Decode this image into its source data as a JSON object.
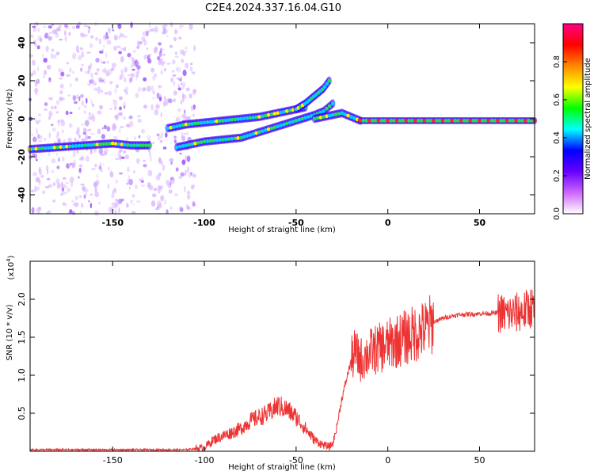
{
  "title": "C2E4.2024.337.16.04.G10",
  "chart_data": [
    {
      "type": "heatmap",
      "xlabel": "Height of straight line (km)",
      "ylabel": "Frequency (Hz)",
      "xlim": [
        -195,
        80
      ],
      "ylim": [
        -50,
        50
      ],
      "xticks": [
        -150,
        -100,
        -50,
        0,
        50
      ],
      "yticks": [
        -40,
        -20,
        0,
        20,
        40
      ],
      "xtick_labels": [
        "-150",
        "-100",
        "-50",
        "0",
        "50"
      ],
      "ytick_labels": [
        "-40",
        "-20",
        "0",
        "20",
        "40"
      ],
      "colorbar": {
        "label": "Normalized spectral amplitude",
        "range": [
          0,
          1
        ],
        "ticks": [
          0.0,
          0.2,
          0.4,
          0.6,
          0.8
        ],
        "tick_labels": [
          "0.0",
          "0.2",
          "0.4",
          "0.6",
          "0.8"
        ],
        "colormap": [
          "#ffffff",
          "#cc66ff",
          "#6600ff",
          "#0000ff",
          "#00ffff",
          "#00ff00",
          "#ffff00",
          "#ff8800",
          "#ff0000",
          "#ff0088"
        ]
      },
      "ridges": [
        {
          "x": [
            -195,
            -180,
            -165,
            -150,
            -140,
            -130
          ],
          "y": [
            -16,
            -15,
            -14,
            -13,
            -14,
            -14
          ]
        },
        {
          "x": [
            -120,
            -110,
            -100,
            -90,
            -80,
            -70,
            -60,
            -50,
            -45
          ],
          "y": [
            -5,
            -3,
            -2,
            -1,
            0,
            1,
            3,
            5,
            6
          ]
        },
        {
          "x": [
            -115,
            -100,
            -90,
            -80,
            -70,
            -60,
            -50,
            -40,
            -35,
            -30
          ],
          "y": [
            -15,
            -12,
            -11,
            -10,
            -7,
            -4,
            -1,
            2,
            4,
            8
          ]
        },
        {
          "x": [
            -50,
            -45,
            -40,
            -35,
            -32
          ],
          "y": [
            5,
            8,
            12,
            16,
            20
          ]
        },
        {
          "x": [
            -40,
            -30,
            -25,
            -20,
            -15
          ],
          "y": [
            0,
            2,
            3,
            1,
            -1
          ]
        },
        {
          "x": [
            -15,
            0,
            20,
            40,
            60,
            80
          ],
          "y": [
            -1,
            -1,
            -1,
            -1,
            -1,
            -1
          ]
        }
      ]
    },
    {
      "type": "line",
      "xlabel": "Height of straight line (km)",
      "ylabel": "SNR (10 * v/v)",
      "scale_label": "(x10",
      "scale_exp": "4",
      "xlim": [
        -195,
        80
      ],
      "ylim": [
        0,
        2.5
      ],
      "xticks": [
        -150,
        -100,
        -50,
        0,
        50
      ],
      "yticks": [
        0.5,
        1.0,
        1.5,
        2.0
      ],
      "xtick_labels": [
        "-150",
        "-100",
        "-50",
        "0",
        "50"
      ],
      "ytick_labels": [
        "0.5",
        "1.0",
        "1.5",
        "2.0"
      ],
      "color": "#ee3333",
      "x": [
        -195,
        -170,
        -140,
        -110,
        -100,
        -95,
        -90,
        -85,
        -80,
        -75,
        -70,
        -65,
        -60,
        -55,
        -50,
        -45,
        -40,
        -35,
        -32,
        -30,
        -28,
        -25,
        -22,
        -20,
        -18,
        -15,
        -12,
        -10,
        -5,
        0,
        5,
        10,
        15,
        20,
        25,
        30,
        35,
        40,
        50,
        60,
        65,
        70,
        75,
        78,
        80
      ],
      "y": [
        0.02,
        0.02,
        0.02,
        0.02,
        0.05,
        0.15,
        0.2,
        0.25,
        0.3,
        0.4,
        0.45,
        0.5,
        0.6,
        0.55,
        0.45,
        0.3,
        0.15,
        0.08,
        0.06,
        0.1,
        0.3,
        0.7,
        1.0,
        1.2,
        1.3,
        1.2,
        1.25,
        1.3,
        1.35,
        1.4,
        1.45,
        1.5,
        1.55,
        1.6,
        1.7,
        1.75,
        1.78,
        1.8,
        1.81,
        1.82,
        1.8,
        1.82,
        1.85,
        1.9,
        1.85
      ]
    }
  ]
}
